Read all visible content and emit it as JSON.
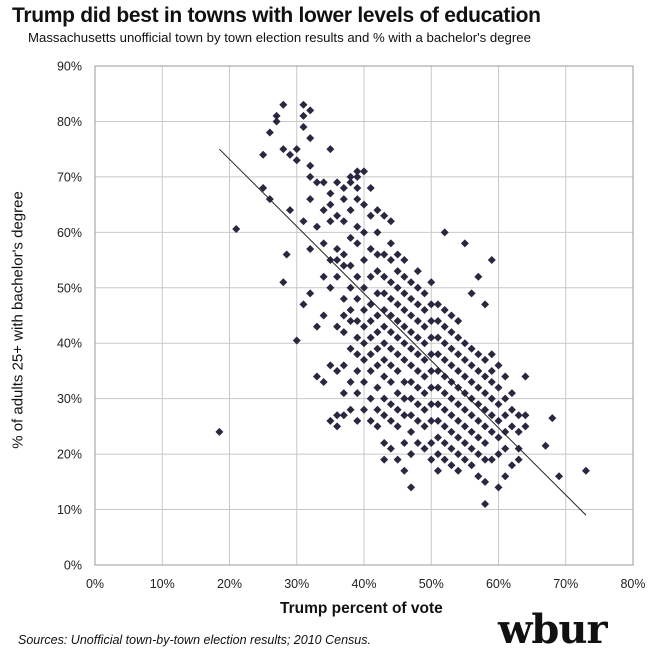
{
  "chart_data": {
    "type": "scatter",
    "title": "Trump did best in towns with lower levels of education",
    "subtitle": "Massachusetts  unofficial town by town election results and % with a bachelor's degree",
    "xlabel": "Trump percent of vote",
    "ylabel": "% of adults 25+ with bachelor's degree",
    "xlim": [
      0,
      80
    ],
    "ylim": [
      0,
      90
    ],
    "xticks": [
      "0%",
      "10%",
      "20%",
      "30%",
      "40%",
      "50%",
      "60%",
      "70%",
      "80%"
    ],
    "yticks": [
      "0%",
      "10%",
      "20%",
      "30%",
      "40%",
      "50%",
      "60%",
      "70%",
      "80%",
      "90%"
    ],
    "grid": true,
    "marker_color": "#2a2740",
    "trendline": {
      "x": [
        18.5,
        73
      ],
      "y": [
        75,
        9
      ]
    },
    "points": [
      [
        18.5,
        24
      ],
      [
        21,
        60.6
      ],
      [
        25,
        74
      ],
      [
        25,
        68
      ],
      [
        26,
        78
      ],
      [
        26,
        66
      ],
      [
        27,
        80
      ],
      [
        27,
        81
      ],
      [
        28,
        83
      ],
      [
        28,
        75
      ],
      [
        28,
        51
      ],
      [
        28.5,
        56
      ],
      [
        29,
        74
      ],
      [
        29,
        64
      ],
      [
        30,
        75
      ],
      [
        30,
        73
      ],
      [
        30,
        40.5
      ],
      [
        31,
        47
      ],
      [
        31,
        62
      ],
      [
        31,
        81
      ],
      [
        31,
        79
      ],
      [
        31,
        83
      ],
      [
        32,
        82
      ],
      [
        32,
        77
      ],
      [
        32,
        72
      ],
      [
        32,
        70
      ],
      [
        32,
        66
      ],
      [
        32,
        57
      ],
      [
        32,
        49
      ],
      [
        33,
        69
      ],
      [
        33,
        61
      ],
      [
        33,
        43
      ],
      [
        33,
        34
      ],
      [
        34,
        69
      ],
      [
        34,
        64
      ],
      [
        34,
        58
      ],
      [
        34,
        52
      ],
      [
        34,
        45
      ],
      [
        34,
        33
      ],
      [
        35,
        75
      ],
      [
        35,
        67
      ],
      [
        35,
        65
      ],
      [
        35,
        62
      ],
      [
        35,
        55
      ],
      [
        35,
        50
      ],
      [
        35,
        36
      ],
      [
        35,
        26
      ],
      [
        36,
        69
      ],
      [
        36,
        63
      ],
      [
        36,
        57
      ],
      [
        36,
        55
      ],
      [
        36,
        52
      ],
      [
        36,
        43
      ],
      [
        36,
        35
      ],
      [
        36,
        27
      ],
      [
        36,
        25
      ],
      [
        37,
        68
      ],
      [
        37,
        66
      ],
      [
        37,
        62
      ],
      [
        37,
        56
      ],
      [
        37,
        54
      ],
      [
        37,
        48
      ],
      [
        37,
        45
      ],
      [
        37,
        42
      ],
      [
        37,
        36
      ],
      [
        37,
        31
      ],
      [
        37,
        27
      ],
      [
        38,
        70
      ],
      [
        38,
        69
      ],
      [
        38,
        64
      ],
      [
        38,
        59
      ],
      [
        38,
        54
      ],
      [
        38,
        50
      ],
      [
        38,
        46
      ],
      [
        38,
        44
      ],
      [
        38,
        39
      ],
      [
        38,
        33
      ],
      [
        38,
        28
      ],
      [
        39,
        71
      ],
      [
        39,
        70
      ],
      [
        39,
        68
      ],
      [
        39,
        66
      ],
      [
        39,
        61
      ],
      [
        39,
        58
      ],
      [
        39,
        52
      ],
      [
        39,
        48
      ],
      [
        39,
        44
      ],
      [
        39,
        41
      ],
      [
        39,
        38
      ],
      [
        39,
        35
      ],
      [
        39,
        31
      ],
      [
        39,
        26
      ],
      [
        40,
        71
      ],
      [
        40,
        65
      ],
      [
        40,
        60
      ],
      [
        40,
        55
      ],
      [
        40,
        50
      ],
      [
        40,
        46
      ],
      [
        40,
        43
      ],
      [
        40,
        40
      ],
      [
        40,
        37
      ],
      [
        40,
        33
      ],
      [
        40,
        28
      ],
      [
        41,
        68
      ],
      [
        41,
        63
      ],
      [
        41,
        57
      ],
      [
        41,
        52
      ],
      [
        41,
        47
      ],
      [
        41,
        44
      ],
      [
        41,
        41
      ],
      [
        41,
        38
      ],
      [
        41,
        35
      ],
      [
        41,
        30
      ],
      [
        41,
        26
      ],
      [
        42,
        64
      ],
      [
        42,
        60
      ],
      [
        42,
        56
      ],
      [
        42,
        53
      ],
      [
        42,
        49
      ],
      [
        42,
        45
      ],
      [
        42,
        42
      ],
      [
        42,
        39
      ],
      [
        42,
        36
      ],
      [
        42,
        32
      ],
      [
        42,
        28
      ],
      [
        42,
        25
      ],
      [
        43,
        63
      ],
      [
        43,
        56
      ],
      [
        43,
        52
      ],
      [
        43,
        49
      ],
      [
        43,
        46
      ],
      [
        43,
        43
      ],
      [
        43,
        40
      ],
      [
        43,
        37
      ],
      [
        43,
        34
      ],
      [
        43,
        30
      ],
      [
        43,
        27
      ],
      [
        43,
        22
      ],
      [
        43,
        19
      ],
      [
        44,
        62
      ],
      [
        44,
        58
      ],
      [
        44,
        55
      ],
      [
        44,
        51
      ],
      [
        44,
        48
      ],
      [
        44,
        45
      ],
      [
        44,
        42
      ],
      [
        44,
        39
      ],
      [
        44,
        36
      ],
      [
        44,
        33
      ],
      [
        44,
        29
      ],
      [
        44,
        26
      ],
      [
        44,
        21
      ],
      [
        45,
        56
      ],
      [
        45,
        53
      ],
      [
        45,
        50
      ],
      [
        45,
        47
      ],
      [
        45,
        44
      ],
      [
        45,
        41
      ],
      [
        45,
        38
      ],
      [
        45,
        35
      ],
      [
        45,
        31
      ],
      [
        45,
        28
      ],
      [
        45,
        25
      ],
      [
        45,
        19
      ],
      [
        46,
        55
      ],
      [
        46,
        52
      ],
      [
        46,
        49
      ],
      [
        46,
        46
      ],
      [
        46,
        43
      ],
      [
        46,
        40
      ],
      [
        46,
        37
      ],
      [
        46,
        33
      ],
      [
        46,
        30
      ],
      [
        46,
        27
      ],
      [
        46,
        22
      ],
      [
        46,
        17
      ],
      [
        47,
        51
      ],
      [
        47,
        48
      ],
      [
        47,
        45
      ],
      [
        47,
        42
      ],
      [
        47,
        39
      ],
      [
        47,
        36
      ],
      [
        47,
        33
      ],
      [
        47,
        30
      ],
      [
        47,
        27
      ],
      [
        47,
        24
      ],
      [
        47,
        20
      ],
      [
        47,
        14
      ],
      [
        48,
        53
      ],
      [
        48,
        50
      ],
      [
        48,
        47
      ],
      [
        48,
        44
      ],
      [
        48,
        41
      ],
      [
        48,
        38
      ],
      [
        48,
        35
      ],
      [
        48,
        32
      ],
      [
        48,
        29
      ],
      [
        48,
        26
      ],
      [
        48,
        22
      ],
      [
        49,
        49
      ],
      [
        49,
        46
      ],
      [
        49,
        43
      ],
      [
        49,
        40
      ],
      [
        49,
        37
      ],
      [
        49,
        34
      ],
      [
        49,
        31
      ],
      [
        49,
        28
      ],
      [
        49,
        25
      ],
      [
        49,
        21
      ],
      [
        50,
        51
      ],
      [
        50,
        47
      ],
      [
        50,
        44
      ],
      [
        50,
        41
      ],
      [
        50,
        38
      ],
      [
        50,
        35
      ],
      [
        50,
        32
      ],
      [
        50,
        29
      ],
      [
        50,
        26
      ],
      [
        50,
        22
      ],
      [
        50,
        19
      ],
      [
        51,
        47
      ],
      [
        51,
        44
      ],
      [
        51,
        41
      ],
      [
        51,
        38
      ],
      [
        51,
        35
      ],
      [
        51,
        32
      ],
      [
        51,
        29
      ],
      [
        51,
        26
      ],
      [
        51,
        23
      ],
      [
        51,
        20
      ],
      [
        51,
        17
      ],
      [
        52,
        60
      ],
      [
        52,
        46
      ],
      [
        52,
        43
      ],
      [
        52,
        40
      ],
      [
        52,
        37
      ],
      [
        52,
        34
      ],
      [
        52,
        31
      ],
      [
        52,
        28
      ],
      [
        52,
        25
      ],
      [
        52,
        22
      ],
      [
        52,
        19
      ],
      [
        53,
        45
      ],
      [
        53,
        42
      ],
      [
        53,
        39
      ],
      [
        53,
        36
      ],
      [
        53,
        33
      ],
      [
        53,
        30
      ],
      [
        53,
        27
      ],
      [
        53,
        24
      ],
      [
        53,
        21
      ],
      [
        53,
        18
      ],
      [
        54,
        44
      ],
      [
        54,
        41
      ],
      [
        54,
        38
      ],
      [
        54,
        35
      ],
      [
        54,
        32
      ],
      [
        54,
        29
      ],
      [
        54,
        26
      ],
      [
        54,
        23
      ],
      [
        54,
        20
      ],
      [
        54,
        17
      ],
      [
        55,
        58
      ],
      [
        55,
        40
      ],
      [
        55,
        37
      ],
      [
        55,
        34
      ],
      [
        55,
        31
      ],
      [
        55,
        28
      ],
      [
        55,
        25
      ],
      [
        55,
        22
      ],
      [
        55,
        19
      ],
      [
        56,
        49
      ],
      [
        56,
        39
      ],
      [
        56,
        36
      ],
      [
        56,
        33
      ],
      [
        56,
        30
      ],
      [
        56,
        27
      ],
      [
        56,
        24
      ],
      [
        56,
        21
      ],
      [
        56,
        18
      ],
      [
        57,
        52
      ],
      [
        57,
        38
      ],
      [
        57,
        35
      ],
      [
        57,
        32
      ],
      [
        57,
        29
      ],
      [
        57,
        26
      ],
      [
        57,
        23
      ],
      [
        57,
        20
      ],
      [
        57,
        16
      ],
      [
        58,
        47
      ],
      [
        58,
        37
      ],
      [
        58,
        34
      ],
      [
        58,
        31
      ],
      [
        58,
        28
      ],
      [
        58,
        25
      ],
      [
        58,
        22
      ],
      [
        58,
        19
      ],
      [
        58,
        15
      ],
      [
        58,
        11
      ],
      [
        59,
        55
      ],
      [
        59,
        38
      ],
      [
        59,
        35
      ],
      [
        59,
        33
      ],
      [
        59,
        30
      ],
      [
        59,
        27
      ],
      [
        59,
        24
      ],
      [
        59,
        19
      ],
      [
        60,
        36
      ],
      [
        60,
        32
      ],
      [
        60,
        29
      ],
      [
        60,
        26
      ],
      [
        60,
        23
      ],
      [
        60,
        20
      ],
      [
        60,
        14
      ],
      [
        61,
        34
      ],
      [
        61,
        30
      ],
      [
        61,
        27
      ],
      [
        61,
        24
      ],
      [
        61,
        21
      ],
      [
        61,
        16
      ],
      [
        62,
        31
      ],
      [
        62,
        28
      ],
      [
        62,
        25
      ],
      [
        62,
        18
      ],
      [
        63,
        27
      ],
      [
        63,
        24
      ],
      [
        63,
        21
      ],
      [
        63,
        19
      ],
      [
        64,
        34
      ],
      [
        64,
        27
      ],
      [
        64,
        25
      ],
      [
        67,
        21.5
      ],
      [
        68,
        26.5
      ],
      [
        69,
        16
      ],
      [
        73,
        17
      ]
    ]
  },
  "source": "Sources:  Unofficial town-by-town election results; 2010 Census.",
  "logo": "wbur"
}
